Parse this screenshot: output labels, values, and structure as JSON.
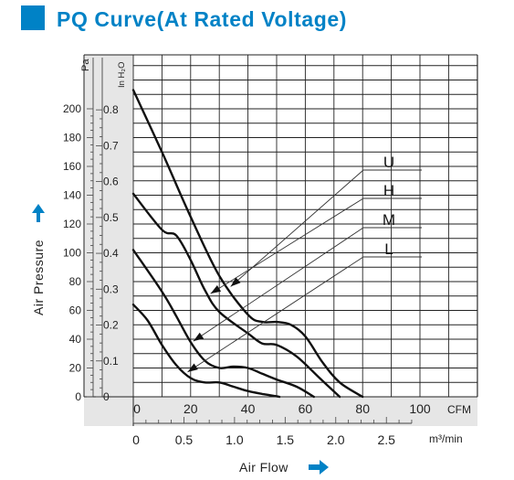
{
  "header": {
    "title": "PQ Curve(At Rated Voltage)",
    "accent_color": "#0082c6"
  },
  "chart_data": {
    "type": "line",
    "title": "PQ Curve(At Rated Voltage)",
    "xlabel": "Air Flow",
    "ylabel": "Air Pressure",
    "x_unit_primary": "CFM",
    "x_unit_secondary": "m³/min",
    "y_unit_primary": "Pa",
    "y_unit_secondary": "In H₂O",
    "xlim": [
      0,
      100
    ],
    "ylim": [
      0,
      240
    ],
    "x_ticks_cfm": [
      0,
      20,
      40,
      60,
      80,
      100
    ],
    "x_tick_labels_cfm": [
      "0",
      "20",
      "40",
      "60",
      "80",
      "100"
    ],
    "x_ticks_m3min": [
      0,
      0.5,
      1.0,
      1.5,
      2.0,
      2.5
    ],
    "x_tick_labels_m3min": [
      "0",
      "0.5",
      "1.0",
      "1.5",
      "2.0",
      "2.5"
    ],
    "y_ticks_pa": [
      0,
      20,
      40,
      60,
      80,
      100,
      120,
      140,
      160,
      180,
      200
    ],
    "y_tick_labels_pa": [
      "0",
      "20",
      "40",
      "60",
      "80",
      "100",
      "120",
      "140",
      "160",
      "180",
      "200"
    ],
    "y_ticks_inh2o": [
      0,
      0.1,
      0.2,
      0.3,
      0.4,
      0.5,
      0.6,
      0.7,
      0.8
    ],
    "y_tick_labels_inh2o": [
      "0",
      "0.1",
      "0.2",
      "0.3",
      "0.4",
      "0.5",
      "0.6",
      "0.7",
      "0.8"
    ],
    "grid": true,
    "legend_placement": "right-middle",
    "series": [
      {
        "name": "U",
        "x": [
          0,
          10,
          20,
          30,
          40,
          45,
          50,
          55,
          60,
          66,
          72,
          80
        ],
        "y": [
          213,
          170,
          125,
          84,
          57,
          52,
          52,
          50,
          42,
          24,
          10,
          0
        ]
      },
      {
        "name": "H",
        "x": [
          0,
          10,
          15,
          20,
          25,
          30,
          40,
          45,
          50,
          57,
          65,
          72
        ],
        "y": [
          141,
          116,
          112,
          95,
          74,
          59,
          44,
          37,
          36,
          28,
          13,
          0
        ]
      },
      {
        "name": "M",
        "x": [
          0,
          10,
          15,
          20,
          25,
          30,
          35,
          40,
          45,
          50,
          57,
          63
        ],
        "y": [
          102,
          73,
          56,
          38,
          25,
          20,
          21,
          20,
          16,
          12,
          7,
          0
        ]
      },
      {
        "name": "L",
        "x": [
          0,
          5,
          10,
          15,
          20,
          25,
          30,
          35,
          40,
          45,
          48,
          51
        ],
        "y": [
          64,
          53,
          36,
          22,
          13,
          10,
          10,
          7,
          4,
          2,
          1,
          0
        ]
      }
    ]
  },
  "axis_titles": {
    "y": "Air Pressure",
    "x": "Air Flow"
  },
  "colors": {
    "accent": "#0082c6",
    "curve": "#111111",
    "grid": "#222222",
    "band": "#e6e6e6"
  }
}
